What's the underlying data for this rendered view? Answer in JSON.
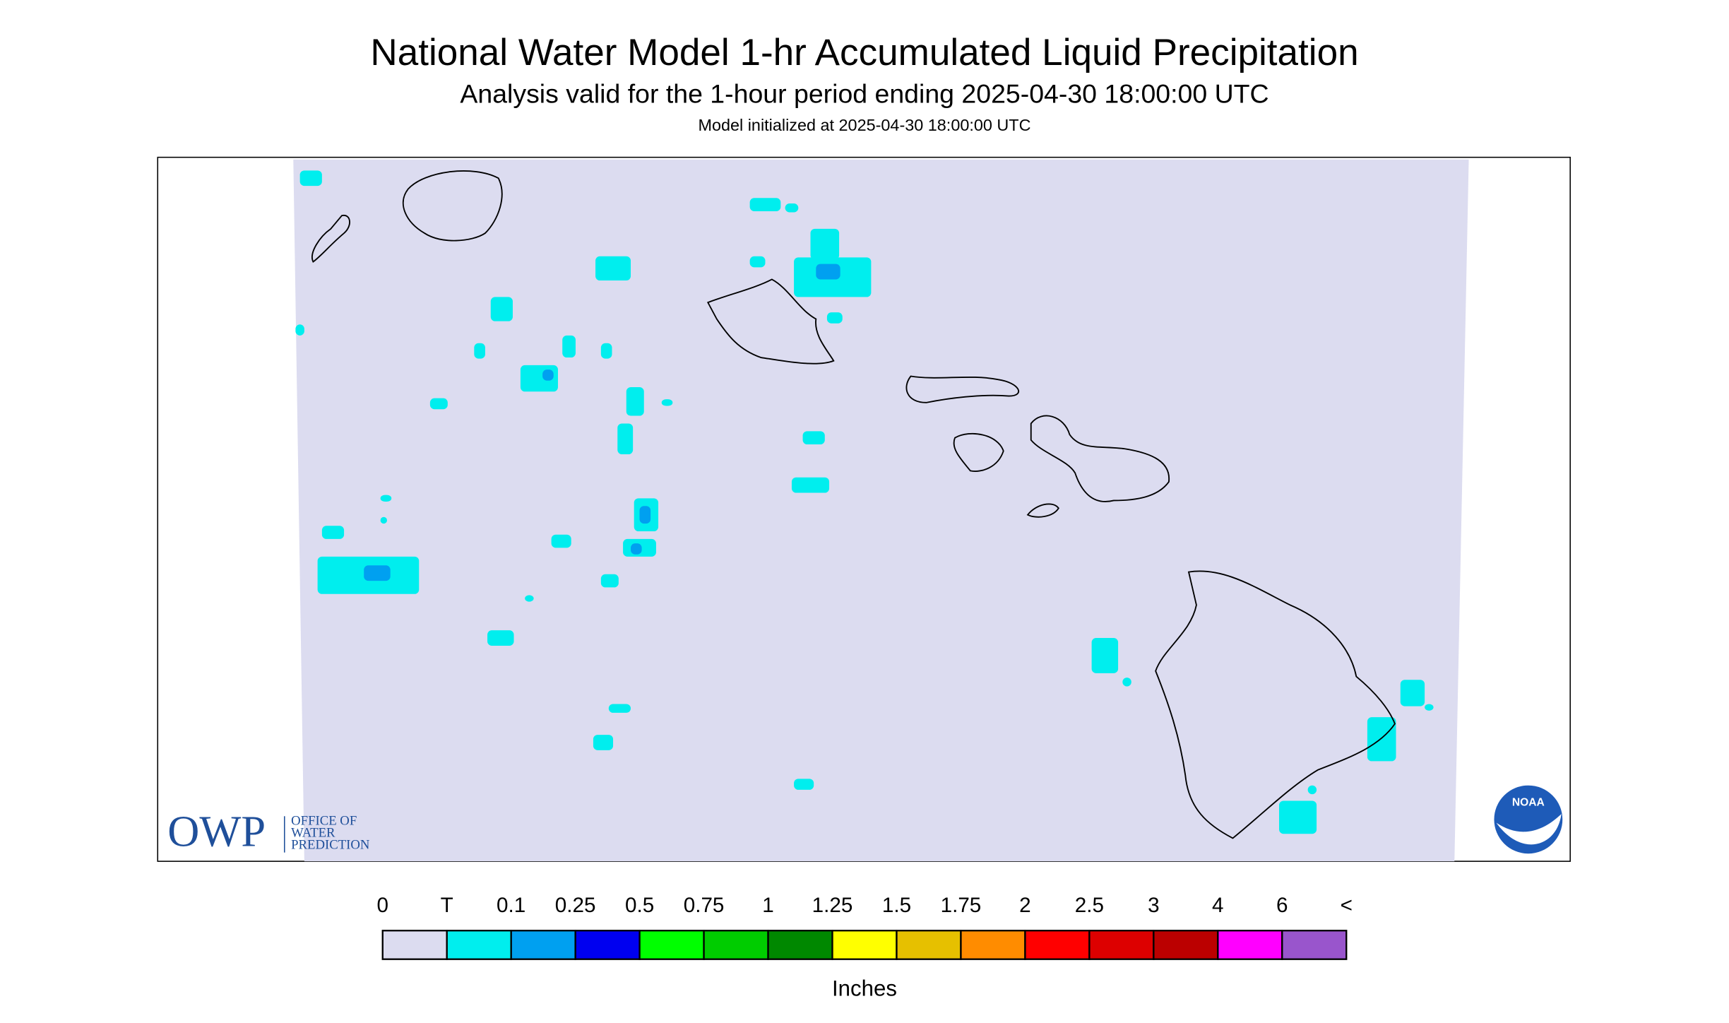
{
  "header": {
    "title": "National Water Model 1-hr Accumulated Liquid Precipitation",
    "subtitle": "Analysis valid for the 1-hour period ending 2025-04-30 18:00:00 UTC",
    "init": "Model initialized at 2025-04-30 18:00:00 UTC"
  },
  "legend": {
    "labels": [
      "0",
      "T",
      "0.1",
      "0.25",
      "0.5",
      "0.75",
      "1",
      "1.25",
      "1.5",
      "1.75",
      "2",
      "2.5",
      "3",
      "4",
      "6",
      "<"
    ],
    "colors": [
      "#dcdcf0",
      "#00eeee",
      "#00a0f0",
      "#0000f0",
      "#00ff00",
      "#00cc00",
      "#008800",
      "#ffff00",
      "#e6c000",
      "#ff8c00",
      "#ff0000",
      "#dd0000",
      "#bb0000",
      "#ff00ff",
      "#9955cc"
    ],
    "units": "Inches"
  },
  "logos": {
    "owp": "OWP",
    "owp_lines": [
      "OFFICE OF",
      "WATER",
      "PREDICTION"
    ],
    "noaa": "NOAA"
  }
}
